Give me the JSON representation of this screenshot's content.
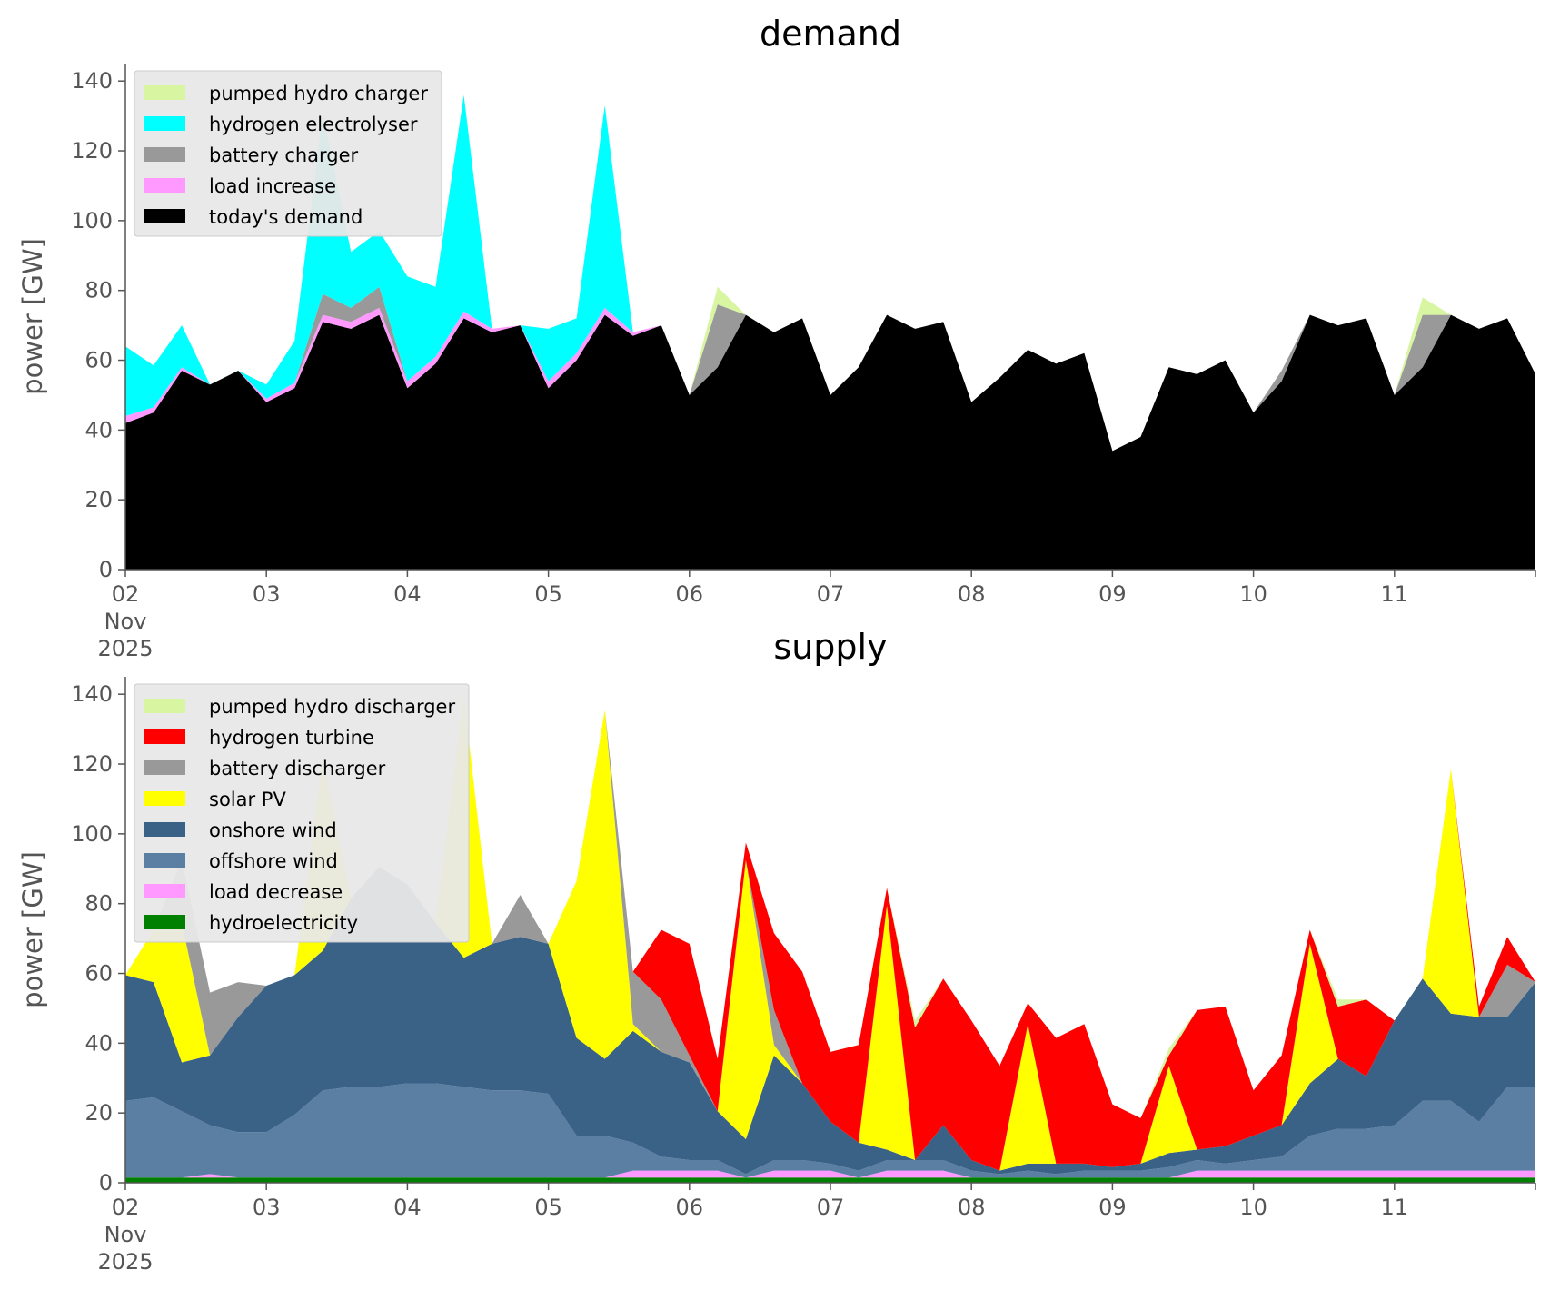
{
  "chart_data": [
    {
      "type": "area",
      "stacked": true,
      "title": "demand",
      "ylabel": "power [GW]",
      "ylim": [
        0,
        145
      ],
      "yticks": [
        "0",
        "20",
        "40",
        "60",
        "80",
        "100",
        "120",
        "140"
      ],
      "xlim": [
        0,
        10
      ],
      "x_unit": "days from 02 Nov 2025",
      "xticks": [
        {
          "pos": 0,
          "label": "02",
          "sub": [
            "Nov",
            "2025"
          ]
        },
        {
          "pos": 1,
          "label": "03"
        },
        {
          "pos": 2,
          "label": "04"
        },
        {
          "pos": 3,
          "label": "05"
        },
        {
          "pos": 4,
          "label": "06"
        },
        {
          "pos": 5,
          "label": "07"
        },
        {
          "pos": 6,
          "label": "08"
        },
        {
          "pos": 7,
          "label": "09"
        },
        {
          "pos": 8,
          "label": "10"
        },
        {
          "pos": 9,
          "label": "11"
        }
      ],
      "legend_position": "top-left",
      "x": [
        0,
        0.2,
        0.4,
        0.6,
        0.8,
        1,
        1.2,
        1.4,
        1.6,
        1.8,
        2,
        2.2,
        2.4,
        2.6,
        2.8,
        3,
        3.2,
        3.4,
        3.6,
        3.8,
        4,
        4.2,
        4.4,
        4.6,
        4.8,
        5,
        5.2,
        5.4,
        5.6,
        5.8,
        6,
        6.2,
        6.4,
        6.6,
        6.8,
        7,
        7.2,
        7.4,
        7.6,
        7.8,
        8,
        8.2,
        8.4,
        8.6,
        8.8,
        9,
        9.2,
        9.4,
        9.6,
        9.8,
        10
      ],
      "series": [
        {
          "name": "today's demand",
          "color": "#000000",
          "values": [
            42,
            45,
            57,
            53,
            57,
            48,
            52,
            71,
            69,
            73,
            52,
            59,
            72,
            68,
            70,
            52,
            60,
            73,
            67,
            70,
            50,
            58,
            73,
            68,
            72,
            50,
            58,
            73,
            69,
            71,
            48,
            55,
            63,
            59,
            62,
            34,
            38,
            58,
            56,
            60,
            45,
            54,
            73,
            70,
            72,
            50,
            58,
            73,
            69,
            72,
            56
          ]
        },
        {
          "name": "load increase",
          "color": "#ff99ff",
          "values": [
            2,
            1.5,
            1,
            0,
            0,
            1,
            1.5,
            2,
            2,
            2,
            2,
            2,
            2,
            1,
            0,
            2,
            2,
            2,
            1,
            0,
            0,
            0,
            0,
            0,
            0,
            0,
            0,
            0,
            0,
            0,
            0,
            0,
            0,
            0,
            0,
            0,
            0,
            0,
            0,
            0,
            0,
            0,
            0,
            0,
            0,
            0,
            0,
            0,
            0,
            0,
            0
          ]
        },
        {
          "name": "battery charger",
          "color": "#999999",
          "values": [
            0,
            0,
            0,
            0,
            0,
            0,
            0,
            6,
            4,
            6,
            0,
            0,
            0,
            0,
            0,
            0,
            0,
            0,
            0,
            0,
            0,
            18,
            0,
            0,
            0,
            0,
            0,
            0,
            0,
            0,
            0,
            0,
            0,
            0,
            0,
            0,
            0,
            0,
            0,
            0,
            0,
            3,
            0,
            0,
            0,
            0,
            15,
            0,
            0,
            0,
            0
          ]
        },
        {
          "name": "hydrogen electrolyser",
          "color": "#00ffff",
          "values": [
            20,
            12,
            12,
            0,
            0,
            4,
            12,
            52,
            16,
            16,
            30,
            20,
            62,
            0,
            0,
            15,
            10,
            58,
            0,
            0,
            0,
            0,
            0,
            0,
            0,
            0,
            0,
            0,
            0,
            0,
            0,
            0,
            0,
            0,
            0,
            0,
            0,
            0,
            0,
            0,
            0,
            0,
            0,
            0,
            0,
            0,
            0,
            0,
            0,
            0,
            0
          ]
        },
        {
          "name": "pumped hydro charger",
          "color": "#d8f5a2",
          "values": [
            0,
            0,
            0,
            0,
            0,
            0,
            0,
            0,
            0,
            0,
            0,
            0,
            0,
            0,
            0,
            0,
            0,
            0,
            0,
            0,
            0,
            5,
            0,
            0,
            0,
            0,
            0,
            0,
            0,
            0,
            0,
            0,
            0,
            0,
            0,
            0,
            0,
            0,
            0,
            0,
            0,
            0,
            0,
            0,
            0,
            0,
            5,
            0,
            0,
            0,
            0
          ]
        }
      ]
    },
    {
      "type": "area",
      "stacked": true,
      "title": "supply",
      "ylabel": "power [GW]",
      "ylim": [
        0,
        145
      ],
      "yticks": [
        "0",
        "20",
        "40",
        "60",
        "80",
        "100",
        "120",
        "140"
      ],
      "xlim": [
        0,
        10
      ],
      "x_unit": "days from 02 Nov 2025",
      "xticks": [
        {
          "pos": 0,
          "label": "02",
          "sub": [
            "Nov",
            "2025"
          ]
        },
        {
          "pos": 1,
          "label": "03"
        },
        {
          "pos": 2,
          "label": "04"
        },
        {
          "pos": 3,
          "label": "05"
        },
        {
          "pos": 4,
          "label": "06"
        },
        {
          "pos": 5,
          "label": "07"
        },
        {
          "pos": 6,
          "label": "08"
        },
        {
          "pos": 7,
          "label": "09"
        },
        {
          "pos": 8,
          "label": "10"
        },
        {
          "pos": 9,
          "label": "11"
        }
      ],
      "legend_position": "top-left",
      "x": [
        0,
        0.2,
        0.4,
        0.6,
        0.8,
        1,
        1.2,
        1.4,
        1.6,
        1.8,
        2,
        2.2,
        2.4,
        2.6,
        2.8,
        3,
        3.2,
        3.4,
        3.6,
        3.8,
        4,
        4.2,
        4.4,
        4.6,
        4.8,
        5,
        5.2,
        5.4,
        5.6,
        5.8,
        6,
        6.2,
        6.4,
        6.6,
        6.8,
        7,
        7.2,
        7.4,
        7.6,
        7.8,
        8,
        8.2,
        8.4,
        8.6,
        8.8,
        9,
        9.2,
        9.4,
        9.6,
        9.8,
        10
      ],
      "series": [
        {
          "name": "hydroelectricity",
          "color": "#008000",
          "values": [
            1.5,
            1.5,
            1.5,
            1.5,
            1.5,
            1.5,
            1.5,
            1.5,
            1.5,
            1.5,
            1.5,
            1.5,
            1.5,
            1.5,
            1.5,
            1.5,
            1.5,
            1.5,
            1.5,
            1.5,
            1.5,
            1.5,
            1.5,
            1.5,
            1.5,
            1.5,
            1.5,
            1.5,
            1.5,
            1.5,
            1.5,
            1.5,
            1.5,
            1.5,
            1.5,
            1.5,
            1.5,
            1.5,
            1.5,
            1.5,
            1.5,
            1.5,
            1.5,
            1.5,
            1.5,
            1.5,
            1.5,
            1.5,
            1.5,
            1.5,
            1.5
          ]
        },
        {
          "name": "load decrease",
          "color": "#ff99ff",
          "values": [
            0,
            0,
            0,
            1,
            0,
            0,
            0,
            0,
            0,
            0,
            0,
            0,
            0,
            0,
            0,
            0,
            0,
            0,
            2,
            2,
            2,
            2,
            0,
            2,
            2,
            2,
            0,
            2,
            2,
            2,
            0,
            0,
            0,
            0,
            0,
            0,
            0,
            0,
            2,
            2,
            2,
            2,
            2,
            2,
            2,
            2,
            2,
            2,
            2,
            2,
            2
          ]
        },
        {
          "name": "offshore wind",
          "color": "#5b7fa3",
          "values": [
            22,
            23,
            19,
            14,
            13,
            13,
            18,
            25,
            26,
            26,
            27,
            27,
            26,
            25,
            25,
            24,
            12,
            12,
            8,
            4,
            3,
            3,
            1,
            3,
            3,
            2,
            2,
            3,
            3,
            3,
            2,
            1,
            2,
            1,
            2,
            2,
            2,
            3,
            3,
            2,
            3,
            4,
            10,
            12,
            12,
            13,
            20,
            20,
            14,
            24,
            24
          ]
        },
        {
          "name": "onshore wind",
          "color": "#3a6186",
          "values": [
            36,
            33,
            14,
            20,
            33,
            42,
            40,
            40,
            54,
            63,
            57,
            46,
            37,
            42,
            44,
            43,
            28,
            22,
            32,
            30,
            28,
            14,
            10,
            30,
            22,
            12,
            8,
            3,
            0,
            10,
            3,
            1,
            2,
            3,
            2,
            1,
            2,
            4,
            3,
            5,
            7,
            9,
            15,
            20,
            15,
            30,
            35,
            25,
            30,
            20,
            30
          ]
        },
        {
          "name": "solar PV",
          "color": "#ffff00",
          "values": [
            0,
            15,
            40,
            0,
            0,
            0,
            0,
            55,
            0,
            0,
            0,
            0,
            75,
            0,
            0,
            0,
            45,
            100,
            2,
            0,
            0,
            0,
            80,
            3,
            0,
            0,
            0,
            70,
            0,
            0,
            0,
            0,
            40,
            0,
            0,
            0,
            0,
            25,
            0,
            0,
            0,
            0,
            40,
            0,
            0,
            0,
            0,
            70,
            0,
            0,
            0
          ]
        },
        {
          "name": "battery discharger",
          "color": "#999999",
          "values": [
            0,
            0,
            18,
            18,
            10,
            0,
            0,
            0,
            0,
            0,
            0,
            0,
            0,
            0,
            12,
            0,
            0,
            0,
            15,
            15,
            2,
            0,
            0,
            10,
            0,
            0,
            0,
            0,
            0,
            0,
            0,
            0,
            0,
            0,
            0,
            0,
            0,
            0,
            0,
            0,
            0,
            0,
            0,
            0,
            0,
            0,
            0,
            0,
            0,
            15,
            0
          ]
        },
        {
          "name": "hydrogen turbine",
          "color": "#ff0000",
          "values": [
            0,
            0,
            0,
            0,
            0,
            0,
            0,
            0,
            0,
            0,
            0,
            0,
            0,
            0,
            0,
            0,
            0,
            0,
            0,
            20,
            32,
            15,
            5,
            22,
            32,
            20,
            28,
            5,
            38,
            42,
            40,
            30,
            6,
            36,
            40,
            18,
            13,
            3,
            40,
            40,
            13,
            20,
            4,
            15,
            22,
            0,
            0,
            0,
            3,
            8,
            0
          ]
        },
        {
          "name": "pumped hydro discharger",
          "color": "#d8f5a2",
          "values": [
            0,
            0,
            0,
            0,
            0,
            0,
            0,
            0,
            0,
            0,
            0,
            0,
            0,
            0,
            0,
            0,
            0,
            0,
            0,
            0,
            0,
            0,
            0,
            0,
            0,
            0,
            0,
            0,
            2,
            0,
            0,
            0,
            0,
            0,
            0,
            0,
            0,
            2,
            0,
            0,
            0,
            0,
            0,
            2,
            0,
            0,
            0,
            0,
            0,
            0,
            0
          ]
        }
      ]
    }
  ]
}
